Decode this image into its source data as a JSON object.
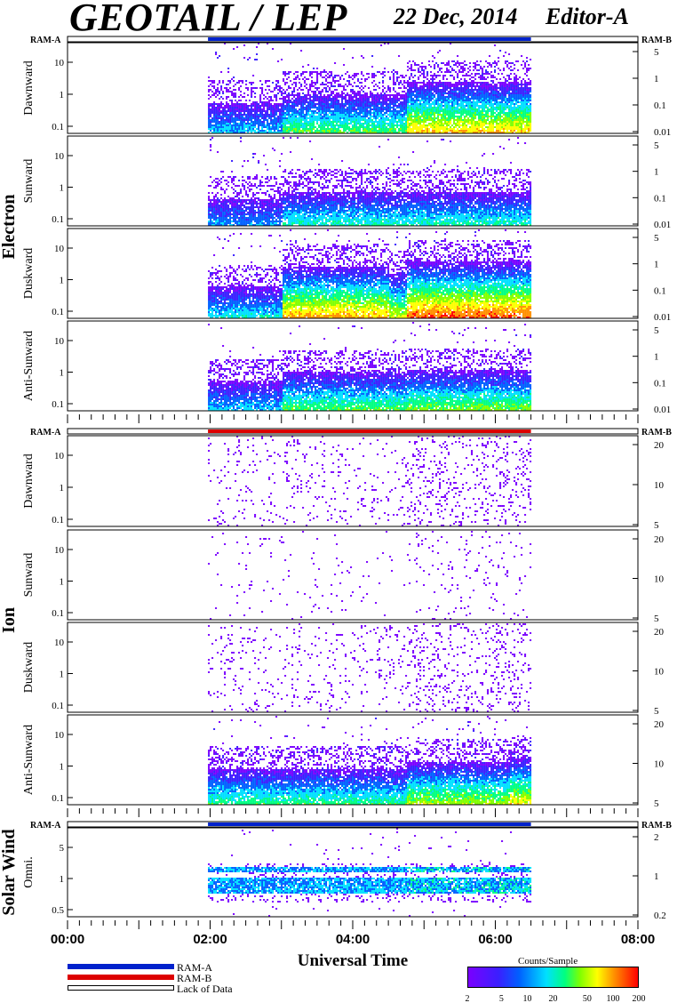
{
  "header": {
    "title": "GEOTAIL / LEP",
    "date": "22 Dec, 2014",
    "editor": "Editor-A"
  },
  "groups": [
    {
      "name": "Electron",
      "ram_left": "RAM-A",
      "ram_right": "RAM-B"
    },
    {
      "name": "Ion",
      "ram_left": "RAM-A",
      "ram_right": "RAM-B"
    },
    {
      "name": "Solar Wind",
      "ram_left": "RAM-A",
      "ram_right": "RAM-B"
    }
  ],
  "chart_data": {
    "type": "heatmap",
    "xlabel": "Universal Time",
    "x_ticks": [
      "00:00",
      "02:00",
      "04:00",
      "06:00",
      "08:00"
    ],
    "x_range_hours": [
      0,
      8
    ],
    "data_coverage_hours": [
      1.97,
      6.5
    ],
    "colorbar": {
      "title": "Counts/Sample",
      "tick_labels": [
        "2",
        "5",
        "10",
        "20",
        "50",
        "100",
        "200"
      ],
      "colors": [
        "#7a00ff",
        "#3a20ff",
        "#0060ff",
        "#00e0ff",
        "#00ff80",
        "#80ff00",
        "#ffff00",
        "#ff9000",
        "#ff0000"
      ]
    },
    "legend": [
      {
        "label": "RAM-A",
        "color": "#0022cc"
      },
      {
        "label": "RAM-B",
        "color": "#dd0000"
      },
      {
        "label": "Lack of Data",
        "color": "#ffffff"
      }
    ],
    "ram_bars": [
      {
        "group": 0,
        "segments": [
          {
            "start": 1.97,
            "end": 6.5,
            "mode": "RAM-A"
          }
        ]
      },
      {
        "group": 1,
        "segments": [
          {
            "start": 1.97,
            "end": 6.5,
            "mode": "RAM-B"
          }
        ]
      },
      {
        "group": 2,
        "segments": [
          {
            "start": 1.97,
            "end": 6.5,
            "mode": "RAM-A"
          }
        ]
      }
    ],
    "panels": [
      {
        "group": 0,
        "label": "Dawnward",
        "left_ticks": [
          "10",
          "1",
          "0.1"
        ],
        "right_ticks": [
          "5",
          "1",
          "0.1",
          "0.01"
        ],
        "intensity": 0.75,
        "profile": [
          {
            "t": 1.97,
            "v": 0.35
          },
          {
            "t": 3.0,
            "v": 0.55
          },
          {
            "t": 4.5,
            "v": 0.55
          },
          {
            "t": 4.75,
            "v": 0.8
          },
          {
            "t": 6.5,
            "v": 0.85
          }
        ]
      },
      {
        "group": 0,
        "label": "Sunward",
        "left_ticks": [
          "10",
          "1",
          "0.1"
        ],
        "right_ticks": [
          "5",
          "1",
          "0.1",
          "0.01"
        ],
        "intensity": 0.45,
        "profile": [
          {
            "t": 1.97,
            "v": 0.3
          },
          {
            "t": 3.0,
            "v": 0.45
          },
          {
            "t": 4.75,
            "v": 0.45
          },
          {
            "t": 6.5,
            "v": 0.4
          }
        ]
      },
      {
        "group": 0,
        "label": "Duskward",
        "left_ticks": [
          "10",
          "1",
          "0.1"
        ],
        "right_ticks": [
          "5",
          "1",
          "0.1",
          "0.01"
        ],
        "intensity": 0.95,
        "profile": [
          {
            "t": 1.97,
            "v": 0.4
          },
          {
            "t": 3.0,
            "v": 0.85
          },
          {
            "t": 4.5,
            "v": 0.7
          },
          {
            "t": 4.75,
            "v": 0.95
          },
          {
            "t": 6.5,
            "v": 0.9
          }
        ]
      },
      {
        "group": 0,
        "label": "Anti-Sunward",
        "left_ticks": [
          "10",
          "1",
          "0.1"
        ],
        "right_ticks": [
          "5",
          "1",
          "0.1",
          "0.01"
        ],
        "intensity": 0.6,
        "profile": [
          {
            "t": 1.97,
            "v": 0.35
          },
          {
            "t": 3.0,
            "v": 0.55
          },
          {
            "t": 4.75,
            "v": 0.6
          },
          {
            "t": 6.5,
            "v": 0.6
          }
        ]
      },
      {
        "group": 1,
        "label": "Dawnward",
        "left_ticks": [
          "10",
          "1",
          "0.1"
        ],
        "right_ticks": [
          "20",
          "10",
          "5"
        ],
        "intensity": 0.15,
        "profile": [
          {
            "t": 1.97,
            "v": 0.15
          },
          {
            "t": 4.75,
            "v": 0.35
          },
          {
            "t": 6.5,
            "v": 0.45
          }
        ]
      },
      {
        "group": 1,
        "label": "Sunward",
        "left_ticks": [
          "10",
          "1",
          "0.1"
        ],
        "right_ticks": [
          "20",
          "10",
          "5"
        ],
        "intensity": 0.08,
        "profile": [
          {
            "t": 1.97,
            "v": 0.05
          },
          {
            "t": 4.75,
            "v": 0.12
          },
          {
            "t": 6.5,
            "v": 0.08
          }
        ]
      },
      {
        "group": 1,
        "label": "Duskward",
        "left_ticks": [
          "10",
          "1",
          "0.1"
        ],
        "right_ticks": [
          "20",
          "10",
          "5"
        ],
        "intensity": 0.2,
        "profile": [
          {
            "t": 1.97,
            "v": 0.15
          },
          {
            "t": 4.75,
            "v": 0.35
          },
          {
            "t": 6.5,
            "v": 0.5
          }
        ]
      },
      {
        "group": 1,
        "label": "Anti-Sunward",
        "left_ticks": [
          "10",
          "1",
          "0.1"
        ],
        "right_ticks": [
          "20",
          "10",
          "5"
        ],
        "intensity": 0.7,
        "profile": [
          {
            "t": 1.97,
            "v": 0.5
          },
          {
            "t": 4.75,
            "v": 0.65
          },
          {
            "t": 6.2,
            "v": 0.75
          },
          {
            "t": 6.5,
            "v": 0.9
          }
        ]
      },
      {
        "group": 2,
        "label": "Omni.",
        "left_ticks": [
          "5",
          "1",
          "0.5"
        ],
        "right_ticks": [
          "2",
          "1",
          "0.2"
        ],
        "intensity": 0.55,
        "profile": [
          {
            "t": 1.97,
            "v": 0.5
          },
          {
            "t": 4.75,
            "v": 0.6
          },
          {
            "t": 6.5,
            "v": 0.55
          }
        ]
      }
    ]
  }
}
